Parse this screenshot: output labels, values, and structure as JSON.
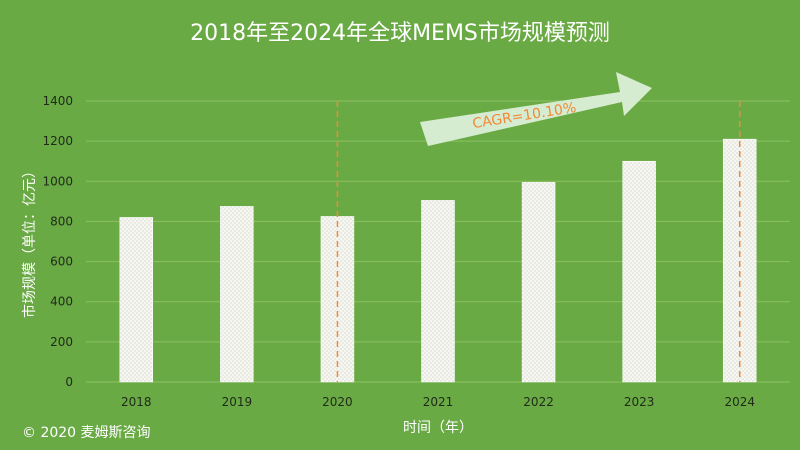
{
  "colors": {
    "background": "#6aaa45",
    "bar_fill": "#f7f7f2",
    "bar_dot": "#c9c9c0",
    "grid": "#8cc062",
    "text": "#ffffff",
    "axis_text": "#1f2a18",
    "dashed_line": "#f08a3a",
    "arrow_fill": "#d6ecd0",
    "cagr_text": "#f08a3a"
  },
  "copyright": "© 2020 麦姆斯咨询",
  "chart_data": {
    "type": "bar",
    "title": "2018年至2024年全球MEMS市场规模预测",
    "xlabel": "时间（年）",
    "ylabel": "市场规模（单位：亿元）",
    "categories": [
      "2018",
      "2019",
      "2020",
      "2021",
      "2022",
      "2023",
      "2024"
    ],
    "values": [
      820,
      875,
      825,
      905,
      995,
      1100,
      1210
    ],
    "ylim": [
      0,
      1400
    ],
    "yticks": [
      0,
      200,
      400,
      600,
      800,
      1000,
      1200,
      1400
    ],
    "grid": true,
    "annotations": {
      "cagr_label": "CAGR=10.10%",
      "dashed_markers": [
        "2020",
        "2024"
      ]
    }
  }
}
